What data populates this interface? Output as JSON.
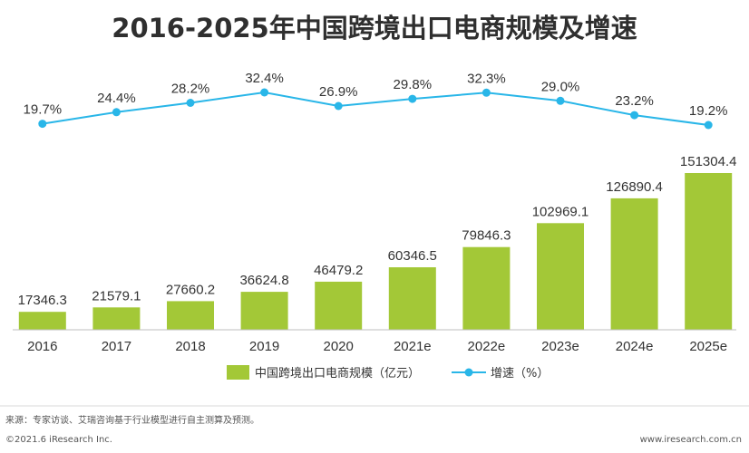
{
  "chart_data": {
    "type": "bar",
    "title": "2016-2025年中国跨境出口电商规模及增速",
    "categories": [
      "2016",
      "2017",
      "2018",
      "2019",
      "2020",
      "2021e",
      "2022e",
      "2023e",
      "2024e",
      "2025e"
    ],
    "series": [
      {
        "name": "中国跨境出口电商规模（亿元）",
        "type": "bar",
        "values": [
          17346.3,
          21579.1,
          27660.2,
          36624.8,
          46479.2,
          60346.5,
          79846.3,
          102969.1,
          126890.4,
          151304.4
        ],
        "value_labels": [
          "17346.3",
          "21579.1",
          "27660.2",
          "36624.8",
          "46479.2",
          "60346.5",
          "79846.3",
          "102969.1",
          "126890.4",
          "151304.4"
        ],
        "color": "#a3c837"
      },
      {
        "name": "增速（%）",
        "type": "line",
        "values": [
          19.7,
          24.4,
          28.2,
          32.4,
          26.9,
          29.8,
          32.3,
          29.0,
          23.2,
          19.2
        ],
        "value_labels": [
          "19.7%",
          "24.4%",
          "28.2%",
          "32.4%",
          "26.9%",
          "29.8%",
          "32.3%",
          "29.0%",
          "23.2%",
          "19.2%"
        ],
        "color": "#29b6e8"
      }
    ],
    "xlabel": "",
    "ylabel": "",
    "legend_position": "bottom",
    "grid": false
  },
  "footer": {
    "source": "来源：专家访谈、艾瑞咨询基于行业模型进行自主测算及预测。",
    "copyright": "©2021.6 iResearch Inc.",
    "website": "www.iresearch.com.cn"
  }
}
